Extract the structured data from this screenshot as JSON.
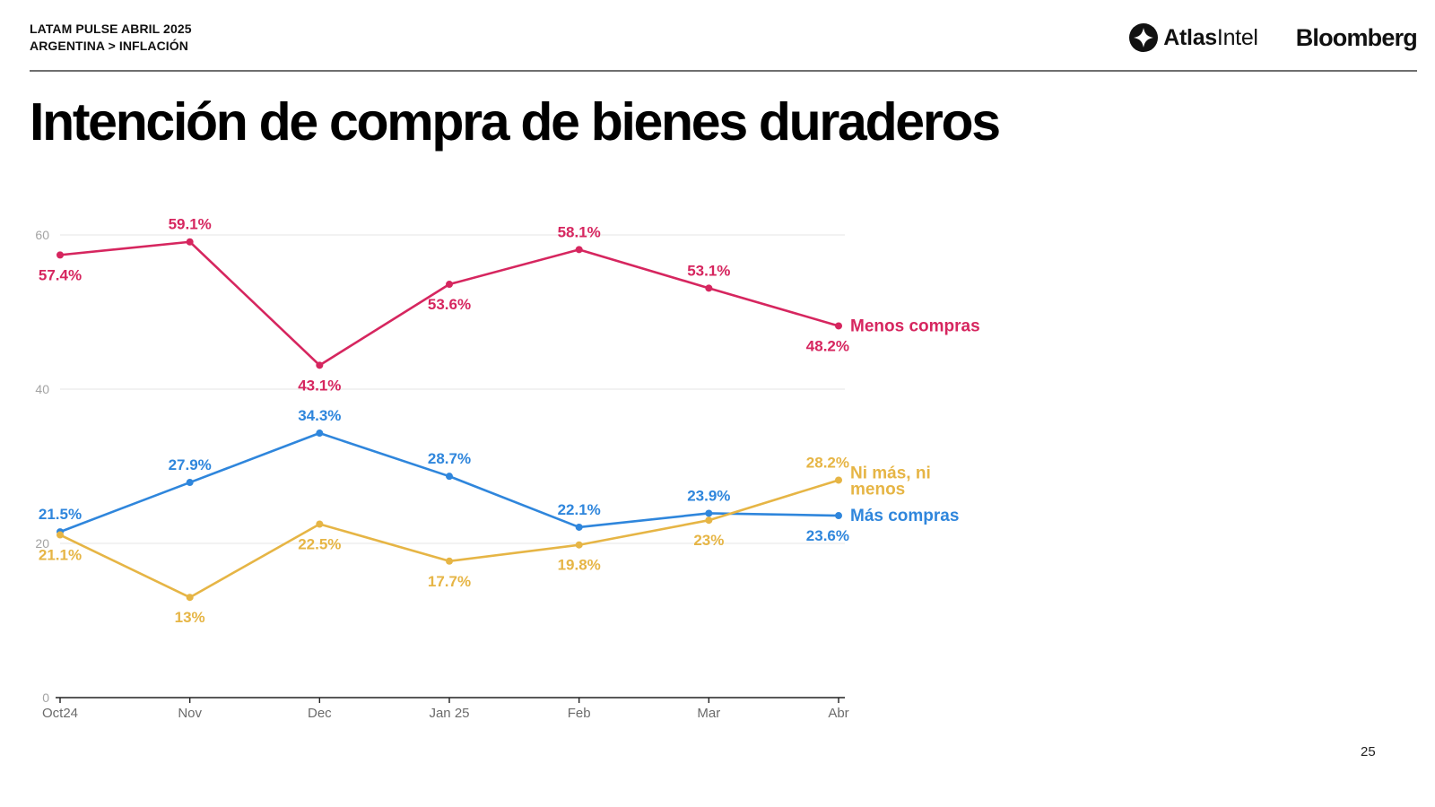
{
  "header": {
    "report": "LATAM PULSE ABRIL 2025",
    "breadcrumb": "ARGENTINA > INFLACIÓN",
    "logo_atlas_bold": "Atlas",
    "logo_atlas_regular": "Intel",
    "logo_bloomberg": "Bloomberg"
  },
  "title": "Intención de compra de bienes duraderos",
  "page_number": "25",
  "chart_data": {
    "type": "line",
    "categories": [
      "Oct24",
      "Nov",
      "Dec",
      "Jan 25",
      "Feb",
      "Mar",
      "Abr"
    ],
    "ylim": [
      0,
      60
    ],
    "yticks": [
      0,
      20,
      40,
      60
    ],
    "grid": true,
    "series": [
      {
        "name": "Menos compras",
        "color": "#d6265f",
        "values": [
          57.4,
          59.1,
          43.1,
          53.6,
          58.1,
          53.1,
          48.2
        ],
        "labels": [
          "57.4%",
          "59.1%",
          "43.1%",
          "53.6%",
          "58.1%",
          "53.1%",
          "48.2%"
        ]
      },
      {
        "name": "Más compras",
        "color": "#2f86dc",
        "values": [
          21.5,
          27.9,
          34.3,
          28.7,
          22.1,
          23.9,
          23.6
        ],
        "labels": [
          "21.5%",
          "27.9%",
          "34.3%",
          "28.7%",
          "22.1%",
          "23.9%",
          "23.6%"
        ]
      },
      {
        "name": "Ni más, ni menos",
        "color": "#e6b545",
        "values": [
          21.1,
          13,
          22.5,
          17.7,
          19.8,
          23,
          28.2
        ],
        "labels": [
          "21.1%",
          "13%",
          "22.5%",
          "17.7%",
          "19.8%",
          "23%",
          "28.2%"
        ]
      }
    ]
  }
}
